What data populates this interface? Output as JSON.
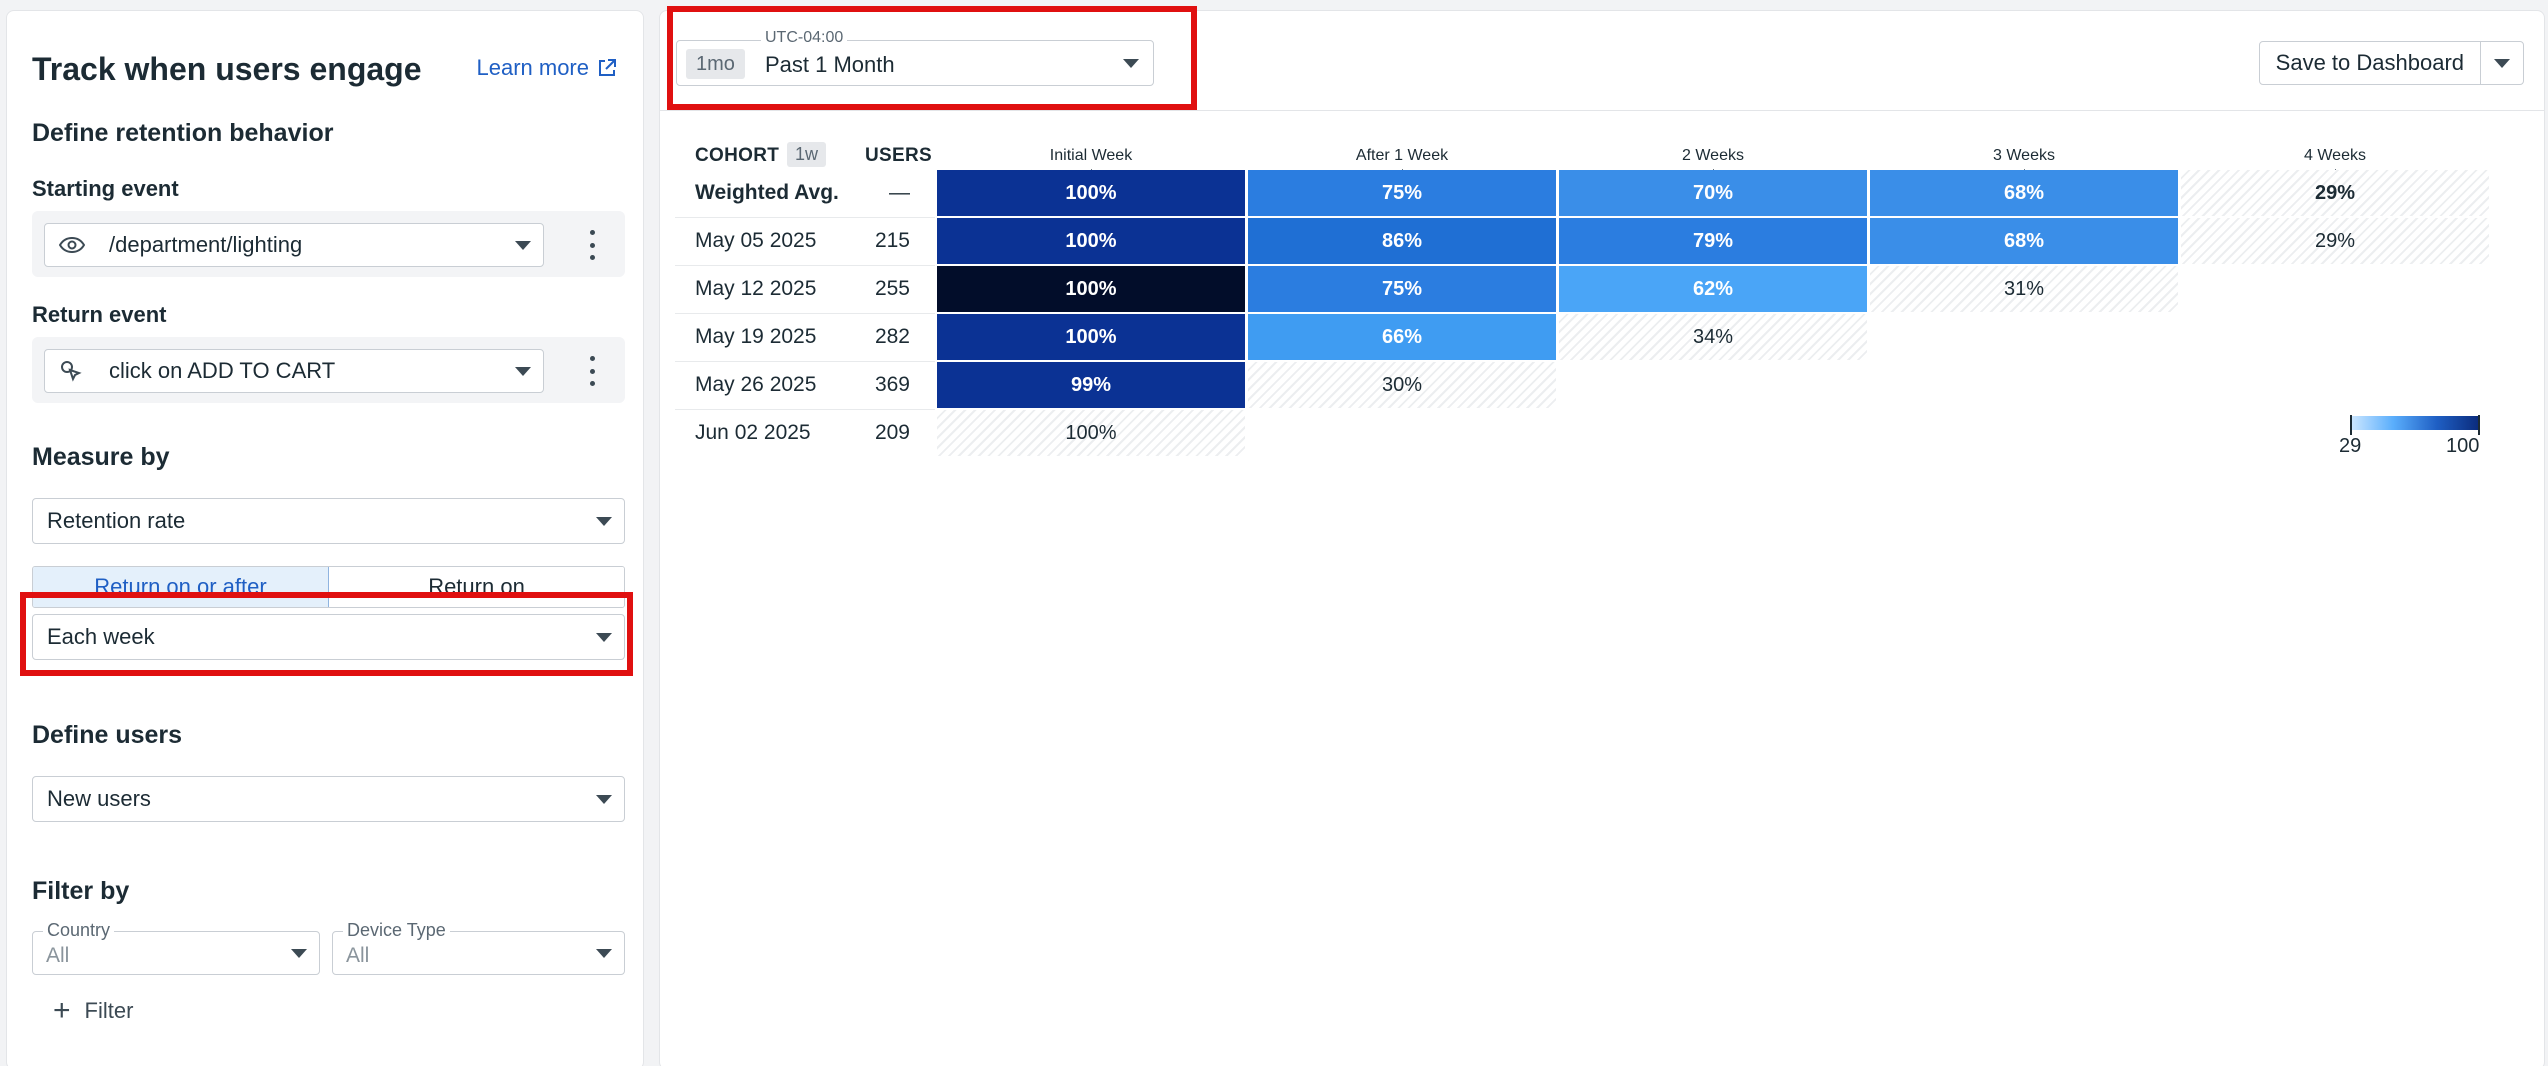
{
  "left": {
    "title": "Track when users engage",
    "learn_more": "Learn more",
    "define_retention": "Define retention behavior",
    "starting_event_label": "Starting event",
    "starting_event_value": "/department/lighting",
    "return_event_label": "Return event",
    "return_event_value": "click on ADD TO CART",
    "measure_by_label": "Measure by",
    "measure_value": "Retention rate",
    "seg_on": "Return on or after",
    "seg_off": "Return on",
    "interval_value": "Each week",
    "define_users_label": "Define users",
    "users_value": "New users",
    "filter_by_label": "Filter by",
    "filters": [
      {
        "label": "Country",
        "value": "All"
      },
      {
        "label": "Device Type",
        "value": "All"
      }
    ],
    "add_filter": "Filter"
  },
  "topbar": {
    "tz_label": "UTC-04:00",
    "range_chip": "1mo",
    "range_value": "Past 1 Month",
    "save_label": "Save to Dashboard"
  },
  "table": {
    "cohort_header": "COHORT",
    "interval_chip": "1w",
    "users_header": "USERS",
    "columns": [
      "Initial Week",
      "After 1 Week",
      "2 Weeks",
      "3 Weeks",
      "4 Weeks"
    ],
    "rows": [
      {
        "label": "Weighted Avg.",
        "users": "—",
        "cells": [
          "100%",
          "75%",
          "70%",
          "68%",
          "29%"
        ]
      },
      {
        "label": "May 05 2025",
        "users": "215",
        "cells": [
          "100%",
          "86%",
          "79%",
          "68%",
          "29%"
        ]
      },
      {
        "label": "May 12 2025",
        "users": "255",
        "cells": [
          "100%",
          "75%",
          "62%",
          "31%"
        ]
      },
      {
        "label": "May 19 2025",
        "users": "282",
        "cells": [
          "100%",
          "66%",
          "34%"
        ]
      },
      {
        "label": "May 26 2025",
        "users": "369",
        "cells": [
          "99%",
          "30%"
        ]
      },
      {
        "label": "Jun 02 2025",
        "users": "209",
        "cells": [
          "100%"
        ]
      }
    ],
    "cell_colors": [
      [
        "#0b3294",
        "#2b7de0",
        "#3a8ee8",
        "#3a8ee8",
        "hatch"
      ],
      [
        "#0b3294",
        "#1f6fd4",
        "#2b7de0",
        "#3a8ee8",
        "hatch"
      ],
      [
        "#020d2a",
        "#2b7de0",
        "#4aa5f7",
        "hatch"
      ],
      [
        "#0b3294",
        "#3f9cf2",
        "hatch"
      ],
      [
        "#0b3294",
        "hatch"
      ],
      [
        "hatch"
      ]
    ],
    "legend_min": "29",
    "legend_max": "100"
  },
  "colors": {
    "accent": "#1f5fc4",
    "highlight": "#e01010"
  }
}
